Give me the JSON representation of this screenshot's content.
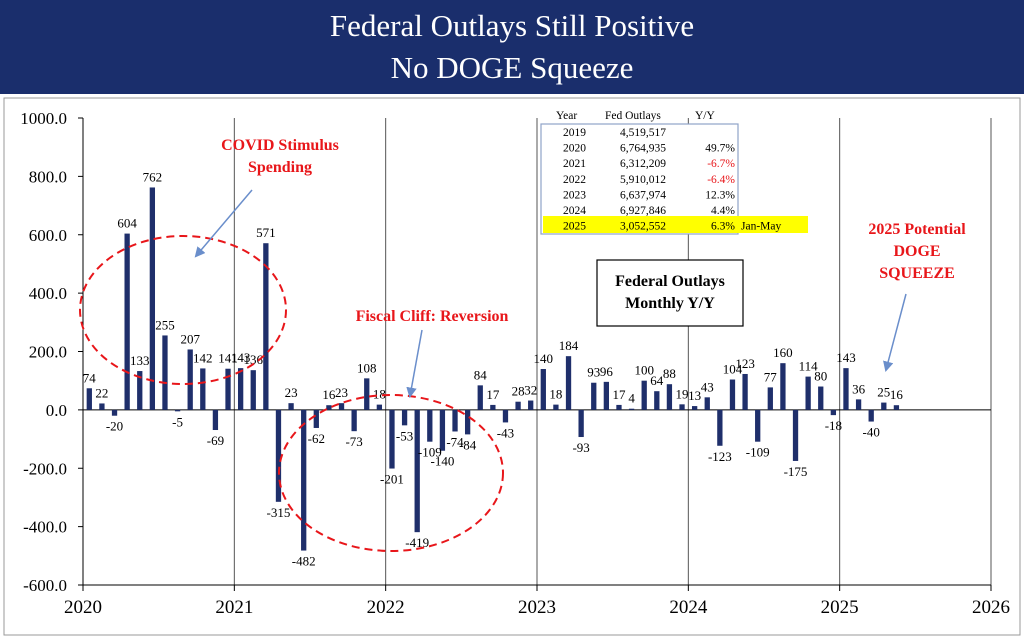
{
  "header": {
    "title_line1": "Federal Outlays Still Positive",
    "title_line2": "No DOGE Squeeze"
  },
  "colors": {
    "header_bg": "#1a2e6c",
    "bar": "#1f2f6b",
    "annotation": "#e8161a",
    "highlight": "#ffff00"
  },
  "chart_data": {
    "type": "bar",
    "title": "Federal Outlays Monthly Y/Y",
    "ylim": [
      -600,
      1000
    ],
    "yticks": [
      "1000.0",
      "800.0",
      "600.0",
      "400.0",
      "200.0",
      "0.0",
      "-200.0",
      "-400.0",
      "-600.0"
    ],
    "ytick_values": [
      1000,
      800,
      600,
      400,
      200,
      0,
      -200,
      -400,
      -600
    ],
    "xlim": [
      2020,
      2026
    ],
    "xticks": [
      "2020",
      "2021",
      "2022",
      "2023",
      "2024",
      "2025",
      "2026"
    ],
    "grid": "vertical lines at year boundaries",
    "months_per_year": 12,
    "values": [
      74,
      22,
      -20,
      604,
      133,
      762,
      255,
      -5,
      207,
      142,
      -69,
      141,
      143,
      136,
      571,
      -315,
      23,
      -482,
      -62,
      16,
      23,
      -73,
      108,
      18,
      -201,
      -53,
      -419,
      -109,
      -140,
      -74,
      -84,
      84,
      17,
      -43,
      28,
      32,
      140,
      18,
      184,
      -93,
      93,
      96,
      17,
      4,
      100,
      64,
      88,
      19,
      13,
      43,
      -123,
      104,
      123,
      -109,
      77,
      160,
      -175,
      114,
      80,
      -18,
      143,
      36,
      -40,
      25,
      16
    ],
    "labels": [
      "74",
      "22",
      "-20",
      "604",
      "133",
      "762",
      "255",
      "-5",
      "207",
      "142",
      "-69",
      "141",
      "143",
      "136",
      "571",
      "-315",
      "23",
      "-482",
      "-62",
      "16",
      "23",
      "-73",
      "108",
      "18",
      "-201",
      "-53",
      "-419",
      "-109",
      "-140",
      "-74",
      "-84",
      "84",
      "17",
      "-43",
      "28",
      "32",
      "140",
      "18",
      "184",
      "-93",
      "93",
      "96",
      "17",
      "4",
      "100",
      "64",
      "88",
      "19",
      "13",
      "43",
      "-123",
      "104",
      "123",
      "-109",
      "77",
      "160",
      "-175",
      "114",
      "80",
      "-18",
      "143",
      "36",
      "-40",
      "25",
      "16"
    ]
  },
  "annotations": {
    "covid": [
      "COVID Stimulus",
      "Spending"
    ],
    "fiscal_cliff": "Fiscal Cliff: Reversion",
    "doge": [
      "2025 Potential",
      "DOGE",
      "SQUEEZE"
    ]
  },
  "legend_box": [
    "Federal Outlays",
    "Monthly Y/Y"
  ],
  "table": {
    "headers": [
      "Year",
      "Fed Outlays",
      "Y/Y"
    ],
    "rows": [
      {
        "year": "2019",
        "outlays": "4,519,517",
        "yy": ""
      },
      {
        "year": "2020",
        "outlays": "6,764,935",
        "yy": "49.7%"
      },
      {
        "year": "2021",
        "outlays": "6,312,209",
        "yy": "-6.7%"
      },
      {
        "year": "2022",
        "outlays": "5,910,012",
        "yy": "-6.4%"
      },
      {
        "year": "2023",
        "outlays": "6,637,974",
        "yy": "12.3%"
      },
      {
        "year": "2024",
        "outlays": "6,927,846",
        "yy": "4.4%"
      },
      {
        "year": "2025",
        "outlays": "3,052,552",
        "yy": "6.3%",
        "note": "Jan-May"
      }
    ]
  }
}
